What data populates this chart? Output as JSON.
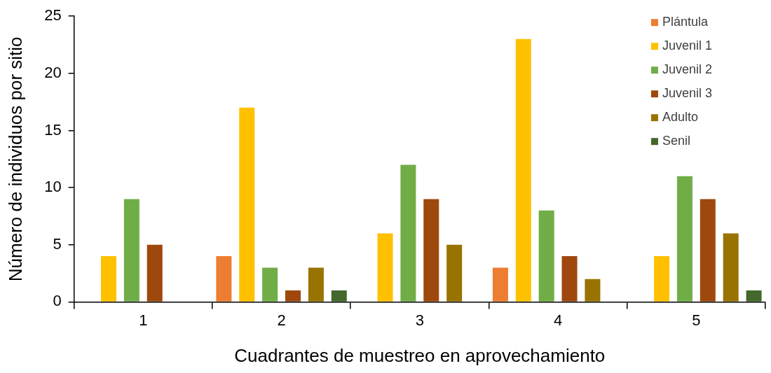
{
  "chart_data": {
    "type": "bar",
    "xlabel": "Cuadrantes de muestreo en aprovechamiento",
    "ylabel": "Número de individuos por sitio",
    "categories": [
      "1",
      "2",
      "3",
      "4",
      "5"
    ],
    "series": [
      {
        "name": "Plántula",
        "color": "#ed7d31",
        "values": [
          0,
          4,
          0,
          3,
          0
        ]
      },
      {
        "name": "Juvenil 1",
        "color": "#ffc000",
        "values": [
          4,
          17,
          6,
          23,
          4
        ]
      },
      {
        "name": "Juvenil 2",
        "color": "#70ad47",
        "values": [
          9,
          3,
          12,
          8,
          11
        ]
      },
      {
        "name": "Juvenil 3",
        "color": "#9e480e",
        "values": [
          5,
          1,
          9,
          4,
          9
        ]
      },
      {
        "name": "Adulto",
        "color": "#997300",
        "values": [
          0,
          3,
          5,
          2,
          6
        ]
      },
      {
        "name": "Senil",
        "color": "#43682b",
        "values": [
          0,
          1,
          0,
          0,
          1
        ]
      }
    ],
    "ylim": [
      0,
      25
    ],
    "yticks": [
      0,
      5,
      10,
      15,
      20,
      25
    ],
    "grid": false,
    "legend": "top right"
  }
}
